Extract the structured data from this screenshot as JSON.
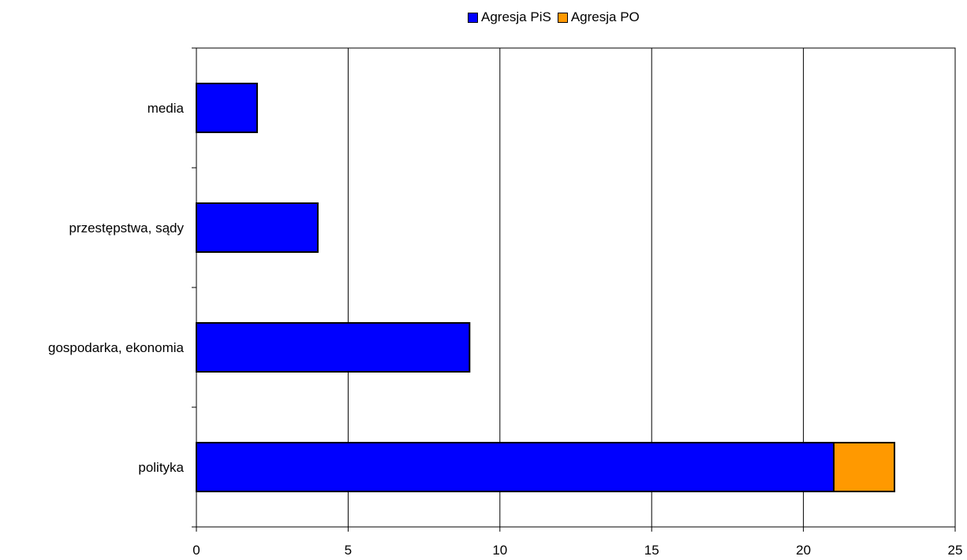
{
  "chart_data": {
    "type": "bar",
    "orientation": "horizontal",
    "stacked": true,
    "categories": [
      "polityka",
      "gospodarka, ekonomia",
      "przestępstwa, sądy",
      "media"
    ],
    "series": [
      {
        "name": "Agresja PiS",
        "color": "#0000ff",
        "values": [
          21,
          9,
          4,
          2
        ]
      },
      {
        "name": "Agresja PO",
        "color": "#ff9900",
        "values": [
          2,
          0,
          0,
          0
        ]
      }
    ],
    "xlim": [
      0,
      25
    ],
    "xticks": [
      0,
      5,
      10,
      15,
      20,
      25
    ],
    "grid": "vertical",
    "legend_position": "top"
  }
}
